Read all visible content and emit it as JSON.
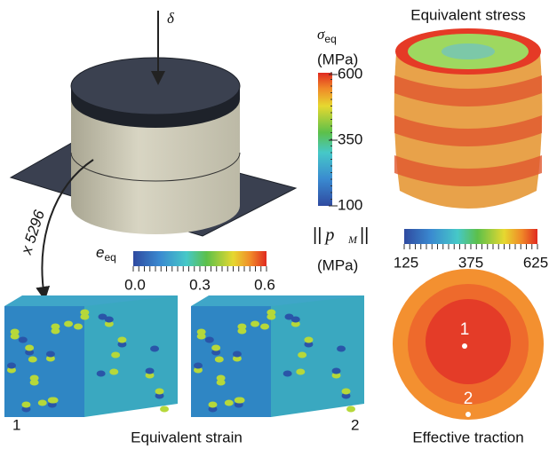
{
  "load_label": "δ",
  "homogenization_label": "x 5296",
  "stress_scale": {
    "symbol": "σ",
    "subscript": "eq",
    "unit": "(MPa)",
    "ticks": [
      600,
      350,
      100
    ]
  },
  "traction_scale": {
    "delimiter": "||",
    "symbol": "p⃗",
    "subscript": "M",
    "unit": "(MPa)",
    "ticks": [
      125,
      375,
      625
    ]
  },
  "strain_scale": {
    "symbol": "e",
    "subscript": "eq",
    "ticks": [
      "0.0",
      "0.3",
      "0.6"
    ]
  },
  "panels": {
    "stress": {
      "title": "Equivalent stress"
    },
    "strain": {
      "title": "Equivalent strain",
      "points": [
        "1",
        "2"
      ]
    },
    "traction": {
      "title": "Effective traction",
      "points": [
        "1",
        "2"
      ]
    }
  }
}
